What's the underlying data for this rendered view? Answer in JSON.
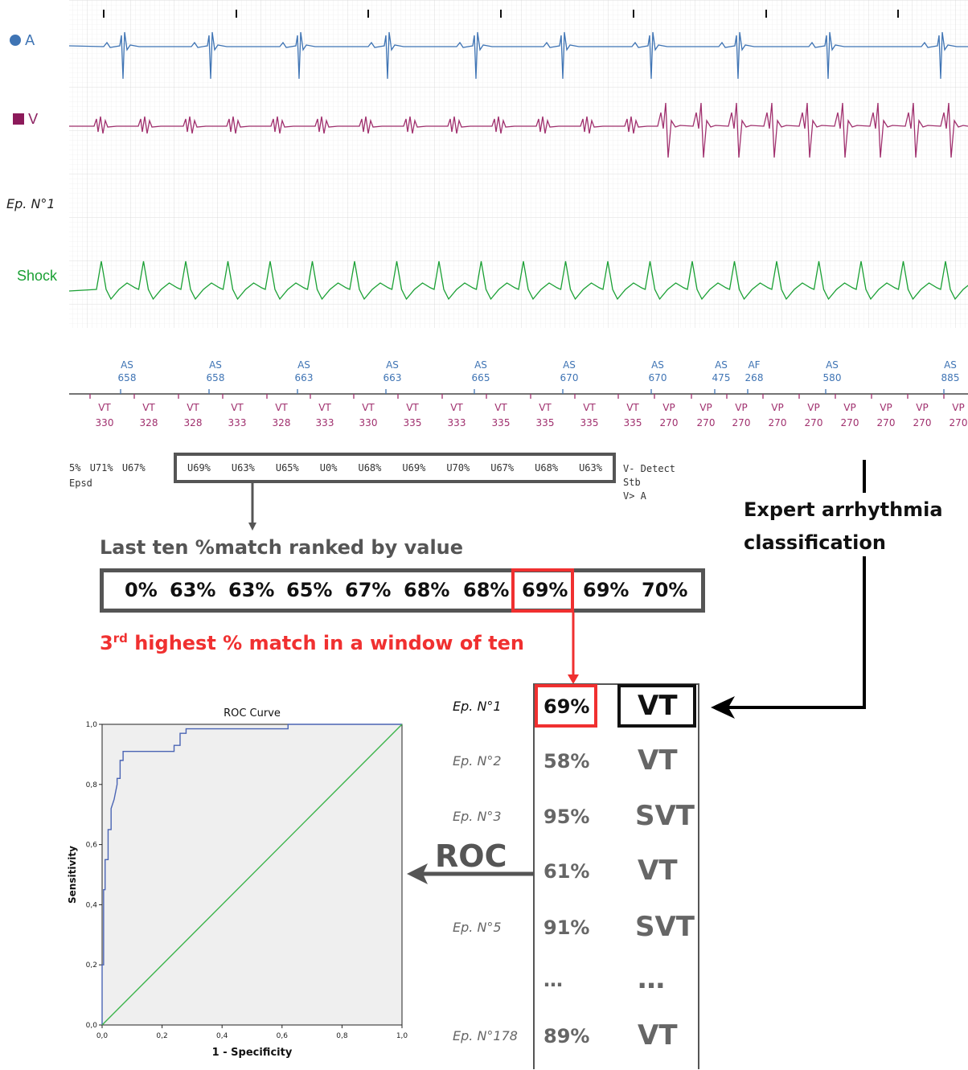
{
  "channels": {
    "a_label": "A",
    "v_label": "V",
    "episode_label": "Ep. N°1",
    "shock_label": "Shock"
  },
  "colors": {
    "atrial": "#3f74b4",
    "ventricular": "#a0306e",
    "shock": "#1aa034",
    "highlight": "#f03030",
    "box_gray": "#555555",
    "text_gray": "#666666"
  },
  "atrial_markers": [
    {
      "label": "AS",
      "value": "658"
    },
    {
      "label": "AS",
      "value": "658"
    },
    {
      "label": "AS",
      "value": "663"
    },
    {
      "label": "AS",
      "value": "663"
    },
    {
      "label": "AS",
      "value": "665"
    },
    {
      "label": "AS",
      "value": "670"
    },
    {
      "label": "AS",
      "value": "670"
    },
    {
      "label": "AS",
      "value": "475"
    },
    {
      "label": "AF",
      "value": "268"
    },
    {
      "label": "AS",
      "value": "580"
    },
    {
      "label": "AS",
      "value": "885"
    }
  ],
  "ventricular_markers": [
    {
      "label": "VT",
      "value": "330"
    },
    {
      "label": "VT",
      "value": "328"
    },
    {
      "label": "VT",
      "value": "328"
    },
    {
      "label": "VT",
      "value": "333"
    },
    {
      "label": "VT",
      "value": "328"
    },
    {
      "label": "VT",
      "value": "333"
    },
    {
      "label": "VT",
      "value": "330"
    },
    {
      "label": "VT",
      "value": "335"
    },
    {
      "label": "VT",
      "value": "333"
    },
    {
      "label": "VT",
      "value": "335"
    },
    {
      "label": "VT",
      "value": "335"
    },
    {
      "label": "VT",
      "value": "335"
    },
    {
      "label": "VT",
      "value": "335"
    },
    {
      "label": "VP",
      "value": "270"
    },
    {
      "label": "VP",
      "value": "270"
    },
    {
      "label": "VP",
      "value": "270"
    },
    {
      "label": "VP",
      "value": "270"
    },
    {
      "label": "VP",
      "value": "270"
    },
    {
      "label": "VP",
      "value": "270"
    },
    {
      "label": "VP",
      "value": "270"
    },
    {
      "label": "VP",
      "value": "270"
    },
    {
      "label": "VP",
      "value": "270"
    }
  ],
  "match_row": {
    "leading": [
      "5%",
      "U71%",
      "U67%"
    ],
    "boxed": [
      "U69%",
      "U63%",
      "U65%",
      "U0%",
      "U68%",
      "U69%",
      "U70%",
      "U67%",
      "U68%",
      "U63%"
    ],
    "epsd": "Epsd",
    "right_lines": [
      "V- Detect",
      "Stb",
      "V> A"
    ]
  },
  "ranked": {
    "title": "Last ten %match ranked by value",
    "values": [
      "0%",
      "63%",
      "63%",
      "65%",
      "67%",
      "68%",
      "68%",
      "69%",
      "69%",
      "70%"
    ],
    "highlight_index": 7,
    "caption_pre": "3",
    "caption_sup": "rd",
    "caption_post": " highest % match in a window of ten"
  },
  "expert_label": [
    "Expert arrhythmia",
    "classification"
  ],
  "episodes": [
    {
      "name": "Ep. N°1",
      "pct": "69%",
      "cls": "VT"
    },
    {
      "name": "Ep. N°2",
      "pct": "58%",
      "cls": "VT"
    },
    {
      "name": "Ep. N°3",
      "pct": "95%",
      "cls": "SVT"
    },
    {
      "name": "",
      "pct": "61%",
      "cls": "VT"
    },
    {
      "name": "Ep. N°5",
      "pct": "91%",
      "cls": "SVT"
    },
    {
      "name": "",
      "pct": "…",
      "cls": "…"
    },
    {
      "name": "Ep. N°178",
      "pct": "89%",
      "cls": "VT"
    }
  ],
  "roc_arrow_label": "ROC",
  "chart_data": {
    "type": "line",
    "title": "ROC Curve",
    "xlabel": "1 - Specificity",
    "ylabel": "Sensitivity",
    "xlim": [
      0,
      1
    ],
    "ylim": [
      0,
      1
    ],
    "xticks": [
      "0,0",
      "0,2",
      "0,4",
      "0,6",
      "0,8",
      "1,0"
    ],
    "yticks": [
      "0,0",
      "0,2",
      "0,4",
      "0,6",
      "0,8",
      "1,0"
    ],
    "grid": false,
    "series": [
      {
        "name": "",
        "color": "#4a64b4",
        "x": [
          0,
          0,
          0.005,
          0.005,
          0.01,
          0.01,
          0.02,
          0.02,
          0.03,
          0.03,
          0.04,
          0.05,
          0.05,
          0.06,
          0.06,
          0.07,
          0.07,
          0.24,
          0.24,
          0.26,
          0.26,
          0.28,
          0.28,
          0.62,
          0.62,
          0.64,
          1.0
        ],
        "y": [
          0,
          0.2,
          0.2,
          0.45,
          0.45,
          0.55,
          0.55,
          0.65,
          0.65,
          0.72,
          0.75,
          0.8,
          0.82,
          0.82,
          0.88,
          0.88,
          0.91,
          0.91,
          0.93,
          0.93,
          0.97,
          0.97,
          0.985,
          0.985,
          1.0,
          1.0,
          1.0
        ]
      },
      {
        "name": "",
        "color": "#3cb44b",
        "x": [
          0,
          1
        ],
        "y": [
          0,
          1
        ]
      }
    ]
  }
}
